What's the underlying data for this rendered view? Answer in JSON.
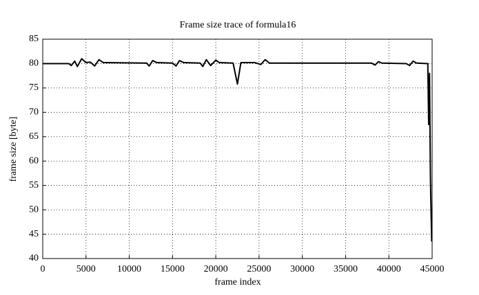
{
  "chart_data": {
    "type": "line",
    "title": "Frame size trace of formula16",
    "x_label": "frame index",
    "y_label": "frame size [byte]",
    "x": [
      0,
      3000,
      3300,
      3700,
      4000,
      4500,
      5000,
      5500,
      6000,
      6500,
      7000,
      12000,
      12300,
      12700,
      13200,
      15000,
      15400,
      15800,
      16300,
      18200,
      18500,
      18900,
      19400,
      20000,
      20400,
      22000,
      22500,
      22900,
      24500,
      25200,
      25700,
      26200,
      38000,
      38400,
      38800,
      39200,
      42000,
      42400,
      42800,
      43200,
      44500,
      44600,
      44700,
      44800,
      44850,
      44950
    ],
    "values": [
      80,
      80,
      79.6,
      80.5,
      79.4,
      81,
      80.2,
      80.3,
      79.5,
      80.8,
      80.2,
      80.1,
      79.5,
      80.6,
      80.2,
      80.1,
      79.5,
      80.6,
      80.2,
      80.1,
      79.4,
      80.8,
      79.6,
      80.7,
      80.2,
      80.1,
      75.8,
      80.2,
      80.2,
      79.8,
      80.8,
      80.1,
      80.1,
      79.7,
      80.4,
      80.1,
      80,
      79.6,
      80.5,
      80.1,
      80,
      67.5,
      78,
      57,
      52,
      43.5
    ],
    "color": "#000000",
    "xlim": [
      0,
      45000
    ],
    "xticks": [
      0,
      5000,
      10000,
      15000,
      20000,
      25000,
      30000,
      35000,
      40000,
      45000
    ],
    "ylim": [
      40,
      85
    ],
    "yticks": [
      40,
      45,
      50,
      55,
      60,
      65,
      70,
      75,
      80,
      85
    ],
    "grid": true
  }
}
